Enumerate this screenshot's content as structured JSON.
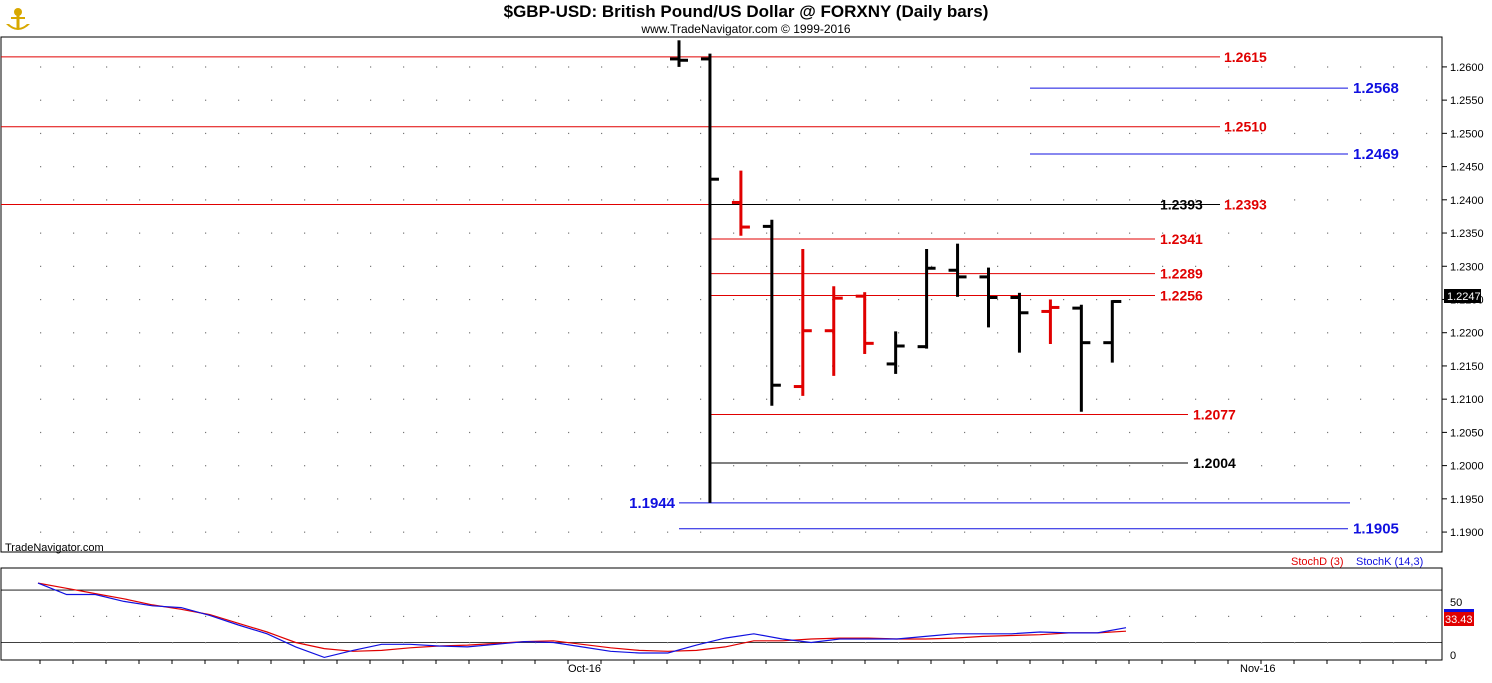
{
  "chart_data": [
    {
      "type": "ohlc",
      "title": "$GBP-USD:  British Pound/US Dollar @ FORXNY  (Daily bars)",
      "subtitle": "www.TradeNavigator.com © 1999-2016",
      "watermark": "TradeNavigator.com",
      "ylim": [
        1.187,
        1.2645
      ],
      "y_ticks": [
        "1.1900",
        "1.1950",
        "1.2000",
        "1.2050",
        "1.2100",
        "1.2150",
        "1.2200",
        "1.2250",
        "1.2300",
        "1.2350",
        "1.2400",
        "1.2450",
        "1.2500",
        "1.2550",
        "1.2600"
      ],
      "last_price": "1.2247",
      "up_color": "#000000",
      "down_color": "#e00000",
      "bars": [
        {
          "o": 1.2612,
          "h": 1.264,
          "l": 1.26,
          "c": 1.261,
          "color": "black"
        },
        {
          "o": 1.2612,
          "h": 1.262,
          "l": 1.1944,
          "c": 1.2431,
          "color": "black"
        },
        {
          "o": 1.2396,
          "h": 1.2444,
          "l": 1.2346,
          "c": 1.2359,
          "color": "red"
        },
        {
          "o": 1.236,
          "h": 1.237,
          "l": 1.209,
          "c": 1.2121,
          "color": "black"
        },
        {
          "o": 1.2119,
          "h": 1.2326,
          "l": 1.2105,
          "c": 1.2203,
          "color": "red"
        },
        {
          "o": 1.2203,
          "h": 1.227,
          "l": 1.2135,
          "c": 1.2252,
          "color": "red"
        },
        {
          "o": 1.2255,
          "h": 1.2261,
          "l": 1.2168,
          "c": 1.2184,
          "color": "red"
        },
        {
          "o": 1.2153,
          "h": 1.2202,
          "l": 1.2138,
          "c": 1.218,
          "color": "black"
        },
        {
          "o": 1.2179,
          "h": 1.2326,
          "l": 1.2176,
          "c": 1.2297,
          "color": "black"
        },
        {
          "o": 1.2294,
          "h": 1.2334,
          "l": 1.2254,
          "c": 1.2284,
          "color": "black"
        },
        {
          "o": 1.2284,
          "h": 1.2298,
          "l": 1.2208,
          "c": 1.2253,
          "color": "black"
        },
        {
          "o": 1.2253,
          "h": 1.226,
          "l": 1.217,
          "c": 1.223,
          "color": "black"
        },
        {
          "o": 1.2232,
          "h": 1.225,
          "l": 1.2183,
          "c": 1.2238,
          "color": "red"
        },
        {
          "o": 1.2237,
          "h": 1.2242,
          "l": 1.2081,
          "c": 1.2185,
          "color": "black"
        },
        {
          "o": 1.2185,
          "h": 1.2249,
          "l": 1.2155,
          "c": 1.2247,
          "color": "black"
        }
      ],
      "levels": [
        {
          "value": "1.2615",
          "color": "#e00000",
          "x_from": 0.0,
          "label_pos": "right"
        },
        {
          "value": "1.2510",
          "color": "#e00000",
          "x_from": 0.0,
          "label_pos": "right"
        },
        {
          "value": "1.2393",
          "color": "#e00000",
          "x_from": 0.0,
          "label_pos": "right"
        },
        {
          "value": "1.2393",
          "color": "#000000",
          "x_from": 1,
          "label_pos": "left-of-right"
        },
        {
          "value": "1.2341",
          "color": "#e00000",
          "x_from": 1,
          "label_pos": "inner"
        },
        {
          "value": "1.2289",
          "color": "#e00000",
          "x_from": 1,
          "label_pos": "inner"
        },
        {
          "value": "1.2256",
          "color": "#e00000",
          "x_from": 1,
          "label_pos": "inner"
        },
        {
          "value": "1.2077",
          "color": "#e00000",
          "x_from": 1,
          "label_pos": "inner"
        },
        {
          "value": "1.2004",
          "color": "#000000",
          "x_from": 1,
          "label_pos": "inner"
        },
        {
          "value": "1.2568",
          "color": "#1010e0",
          "x_from": "right",
          "label_pos": "far"
        },
        {
          "value": "1.2469",
          "color": "#1010e0",
          "x_from": "right",
          "label_pos": "far"
        },
        {
          "value": "1.1944",
          "color": "#1010e0",
          "x_from": 0,
          "label_pos": "start"
        },
        {
          "value": "1.1905",
          "color": "#1010e0",
          "x_from": 0,
          "label_pos": "far"
        }
      ]
    },
    {
      "type": "line",
      "legend": [
        "StochD (3)",
        "StochK (14,3)"
      ],
      "ylim": [
        0,
        100
      ],
      "y_ticks": [
        "0",
        "50"
      ],
      "last_value": "33.43",
      "x_ticks": [
        "Oct-16",
        "Nov-16"
      ],
      "series": [
        {
          "name": "StochD (3)",
          "color": "#e00000",
          "values": [
            88,
            82,
            76,
            70,
            63,
            58,
            52,
            42,
            32,
            20,
            13,
            10,
            11,
            14,
            16,
            17,
            19,
            21,
            22,
            18,
            14,
            11,
            10,
            11,
            15,
            22,
            22,
            24,
            25,
            25,
            24,
            24,
            25,
            27,
            28,
            29,
            31,
            31,
            33
          ]
        },
        {
          "name": "StochK (14,3)",
          "color": "#1010e0",
          "values": [
            88,
            75,
            75,
            67,
            62,
            60,
            51,
            40,
            30,
            15,
            3,
            11,
            18,
            18,
            16,
            15,
            18,
            21,
            20,
            15,
            10,
            8,
            8,
            17,
            25,
            30,
            24,
            20,
            24,
            24,
            24,
            27,
            30,
            30,
            30,
            32,
            31,
            31,
            37
          ]
        }
      ]
    }
  ]
}
